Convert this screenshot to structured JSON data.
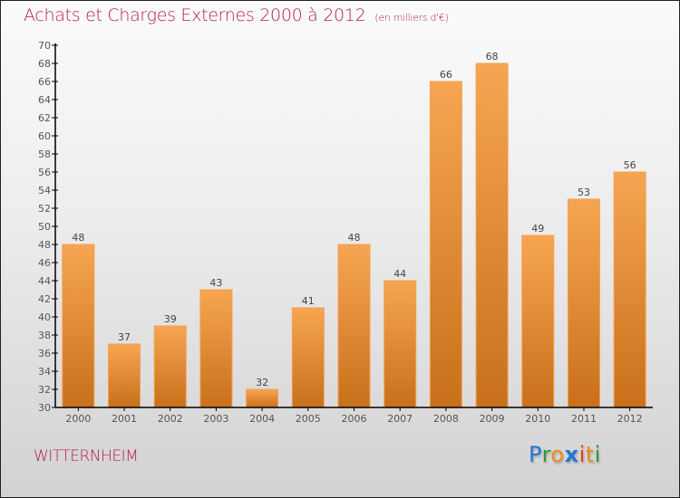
{
  "chart_data": {
    "type": "bar",
    "title": "Achats et Charges Externes 2000 à 2012",
    "subtitle": "(en milliers d'€)",
    "xlabel": "",
    "ylabel": "",
    "categories": [
      "2000",
      "2001",
      "2002",
      "2003",
      "2004",
      "2005",
      "2006",
      "2007",
      "2008",
      "2009",
      "2010",
      "2011",
      "2012"
    ],
    "values": [
      48,
      37,
      39,
      43,
      32,
      41,
      48,
      44,
      66,
      68,
      49,
      53,
      56
    ],
    "ylim": [
      30,
      70
    ],
    "yticks": [
      30,
      32,
      34,
      36,
      38,
      40,
      42,
      44,
      46,
      48,
      50,
      52,
      54,
      56,
      58,
      60,
      62,
      64,
      66,
      68,
      70
    ],
    "grid": false,
    "data_labels": true,
    "bar_color_top": "#f7a552",
    "bar_color_bottom": "#c8701c"
  },
  "commune": "WITTERNHEIM",
  "logo": {
    "letters": [
      {
        "ch": "P",
        "color": "#1f78d1"
      },
      {
        "ch": "r",
        "color": "#2a9a3a"
      },
      {
        "ch": "o",
        "color": "#f08a1c"
      },
      {
        "ch": "x",
        "color": "#1f78d1"
      },
      {
        "ch": "i",
        "color": "#e8401c"
      },
      {
        "ch": "t",
        "color": "#f08a1c"
      },
      {
        "ch": "i",
        "color": "#2a9a3a"
      }
    ]
  },
  "colors": {
    "title": "#b5204e",
    "axis": "#000000"
  }
}
